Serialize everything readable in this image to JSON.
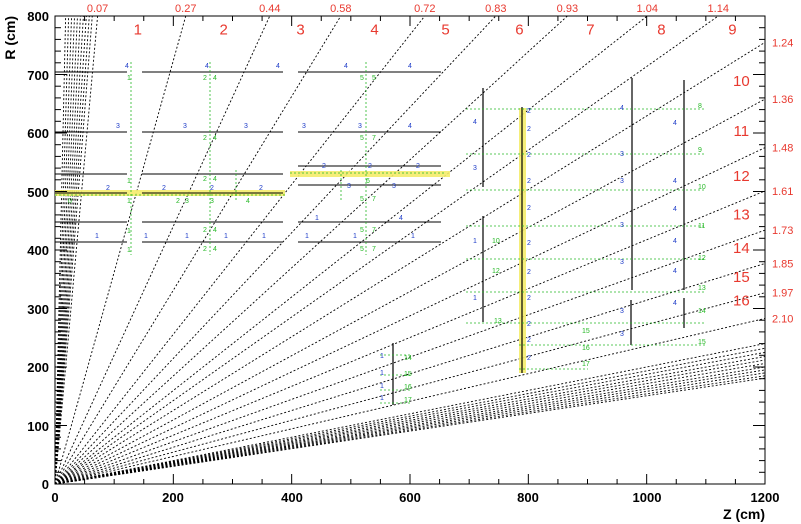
{
  "axes": {
    "x_title": "Z (cm)",
    "y_title": "R (cm)",
    "x_ticks": [
      "0",
      "200",
      "400",
      "600",
      "800",
      "1000",
      "1200"
    ],
    "y_ticks": [
      "0",
      "100",
      "200",
      "300",
      "400",
      "500",
      "600",
      "700",
      "800"
    ],
    "xlim": [
      0,
      1200
    ],
    "ylim": [
      0,
      800
    ]
  },
  "eta_top": [
    {
      "label": "0.07",
      "z": 72
    },
    {
      "label": "0.27",
      "z": 221
    },
    {
      "label": "0.44",
      "z": 363
    },
    {
      "label": "0.58",
      "z": 483
    },
    {
      "label": "0.72",
      "z": 625
    },
    {
      "label": "0.83",
      "z": 745
    },
    {
      "label": "0.93",
      "z": 866
    },
    {
      "label": "1.04",
      "z": 1001
    },
    {
      "label": "1.14",
      "z": 1121
    }
  ],
  "eta_right": [
    {
      "label": "1.24",
      "r": 755
    },
    {
      "label": "1.36",
      "r": 658
    },
    {
      "label": "1.48",
      "r": 575
    },
    {
      "label": "1.61",
      "r": 501
    },
    {
      "label": "1.73",
      "r": 434
    },
    {
      "label": "1.85",
      "r": 377
    },
    {
      "label": "1.97",
      "r": 327
    },
    {
      "label": "2.10",
      "r": 283
    }
  ],
  "tower_labels": [
    {
      "label": "1",
      "z": 140,
      "r": 768
    },
    {
      "label": "2",
      "z": 285,
      "r": 768
    },
    {
      "label": "3",
      "z": 415,
      "r": 768
    },
    {
      "label": "4",
      "z": 540,
      "r": 768
    },
    {
      "label": "5",
      "z": 660,
      "r": 768
    },
    {
      "label": "6",
      "z": 785,
      "r": 768
    },
    {
      "label": "7",
      "z": 905,
      "r": 768
    },
    {
      "label": "8",
      "z": 1025,
      "r": 768
    },
    {
      "label": "9",
      "z": 1145,
      "r": 768
    },
    {
      "label": "10",
      "z": 1160,
      "r": 680
    },
    {
      "label": "11",
      "z": 1160,
      "r": 595
    },
    {
      "label": "12",
      "z": 1160,
      "r": 518
    },
    {
      "label": "13",
      "z": 1160,
      "r": 452
    },
    {
      "label": "14",
      "z": 1160,
      "r": 395
    },
    {
      "label": "15",
      "z": 1160,
      "r": 345
    },
    {
      "label": "16",
      "z": 1160,
      "r": 305
    }
  ],
  "colors": {
    "axis": "#000000",
    "eta": "#e8392f",
    "chamber_id": "#1e3cc8",
    "layer_id": "#26b826",
    "highlight": "#f2e63a"
  }
}
